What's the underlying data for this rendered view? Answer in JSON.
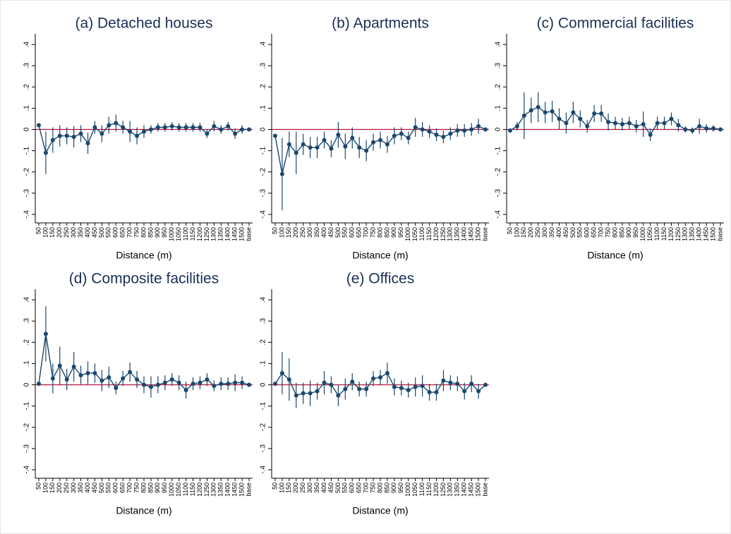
{
  "chart_data": [
    {
      "type": "line",
      "title": "(a) Detached houses",
      "x_label": "Distance (m)",
      "categories": [
        "50",
        "100",
        "150",
        "200",
        "250",
        "300",
        "350",
        "400",
        "450",
        "500",
        "550",
        "600",
        "650",
        "700",
        "750",
        "800",
        "850",
        "900",
        "950",
        "1000",
        "1050",
        "1100",
        "1150",
        "1200",
        "1250",
        "1300",
        "1350",
        "1400",
        "1450",
        "1500",
        "base"
      ],
      "values": [
        0.02,
        -0.11,
        -0.05,
        -0.03,
        -0.03,
        -0.035,
        -0.02,
        -0.065,
        0.01,
        -0.02,
        0.02,
        0.03,
        0.01,
        -0.01,
        -0.03,
        -0.01,
        0.0,
        0.01,
        0.01,
        0.015,
        0.01,
        0.01,
        0.01,
        0.01,
        -0.02,
        0.015,
        0.0,
        0.015,
        -0.02,
        0.0,
        0.0
      ],
      "error": [
        0,
        0.1,
        0.06,
        0.05,
        0.04,
        0.05,
        0.04,
        0.05,
        0.03,
        0.04,
        0.04,
        0.04,
        0.03,
        0.05,
        0.04,
        0.03,
        0.02,
        0.02,
        0.02,
        0.02,
        0.02,
        0.02,
        0.02,
        0.02,
        0.02,
        0.025,
        0.02,
        0.02,
        0.025,
        0.02,
        0
      ],
      "color": "#1a476f",
      "hline": 0,
      "hline_color": "#b5123c",
      "ylim": [
        -0.44,
        0.45
      ],
      "yticks": [
        {
          "value": 0.4,
          "label": ".4"
        },
        {
          "value": 0.3,
          "label": ".3"
        },
        {
          "value": 0.2,
          "label": ".2"
        },
        {
          "value": 0.1,
          "label": ".1"
        },
        0,
        {
          "value": -0.1,
          "label": "-.1"
        },
        {
          "value": -0.2,
          "label": "-.2"
        },
        {
          "value": -0.3,
          "label": "-.3"
        },
        {
          "value": -0.4,
          "label": "-.4"
        }
      ]
    },
    {
      "type": "line",
      "title": "(b) Apartments",
      "x_label": "Distance (m)",
      "categories": [
        "50",
        "100",
        "150",
        "200",
        "250",
        "300",
        "350",
        "400",
        "450",
        "500",
        "550",
        "600",
        "650",
        "700",
        "750",
        "800",
        "850",
        "900",
        "950",
        "1000",
        "1050",
        "1100",
        "1150",
        "1200",
        "1250",
        "1300",
        "1350",
        "1400",
        "1450",
        "1500",
        "base"
      ],
      "values": [
        -0.03,
        -0.21,
        -0.07,
        -0.11,
        -0.07,
        -0.085,
        -0.085,
        -0.05,
        -0.09,
        -0.025,
        -0.08,
        -0.04,
        -0.085,
        -0.1,
        -0.06,
        -0.05,
        -0.07,
        -0.03,
        -0.02,
        -0.04,
        0.01,
        0.0,
        -0.01,
        -0.025,
        -0.035,
        -0.02,
        -0.005,
        -0.005,
        0.0,
        0.015,
        0.0
      ],
      "error": [
        0,
        0.17,
        0.06,
        0.1,
        0.05,
        0.05,
        0.05,
        0.04,
        0.04,
        0.06,
        0.06,
        0.05,
        0.05,
        0.05,
        0.04,
        0.04,
        0.04,
        0.04,
        0.03,
        0.03,
        0.045,
        0.035,
        0.03,
        0.03,
        0.03,
        0.03,
        0.03,
        0.03,
        0.03,
        0.035,
        0
      ],
      "color": "#1a476f",
      "hline": 0,
      "hline_color": "#b5123c",
      "ylim": [
        -0.44,
        0.45
      ],
      "yticks": [
        {
          "value": 0.4,
          "label": ".4"
        },
        {
          "value": 0.3,
          "label": ".3"
        },
        {
          "value": 0.2,
          "label": ".2"
        },
        {
          "value": 0.1,
          "label": ".1"
        },
        0,
        {
          "value": -0.1,
          "label": "-.1"
        },
        {
          "value": -0.2,
          "label": "-.2"
        },
        {
          "value": -0.3,
          "label": "-.3"
        },
        {
          "value": -0.4,
          "label": "-.4"
        }
      ]
    },
    {
      "type": "line",
      "title": "(c) Commercial facilities",
      "x_label": "Distance (m)",
      "categories": [
        "50",
        "100",
        "150",
        "200",
        "250",
        "300",
        "350",
        "400",
        "450",
        "500",
        "550",
        "600",
        "650",
        "700",
        "750",
        "800",
        "850",
        "900",
        "950",
        "1000",
        "1050",
        "1100",
        "1150",
        "1200",
        "1250",
        "1300",
        "1350",
        "1400",
        "1450",
        "1500",
        "base"
      ],
      "values": [
        -0.005,
        0.015,
        0.065,
        0.09,
        0.105,
        0.08,
        0.085,
        0.05,
        0.03,
        0.08,
        0.05,
        0.015,
        0.075,
        0.075,
        0.035,
        0.03,
        0.025,
        0.03,
        0.015,
        0.025,
        -0.025,
        0.03,
        0.03,
        0.05,
        0.02,
        0.0,
        -0.005,
        0.015,
        0.005,
        0.005,
        0.0
      ],
      "error": [
        0,
        0.02,
        0.11,
        0.06,
        0.07,
        0.05,
        0.05,
        0.05,
        0.05,
        0.05,
        0.04,
        0.03,
        0.04,
        0.04,
        0.04,
        0.03,
        0.03,
        0.03,
        0.03,
        0.06,
        0.03,
        0.03,
        0.03,
        0.03,
        0.03,
        0.015,
        0.015,
        0.035,
        0.02,
        0.015,
        0
      ],
      "color": "#1a476f",
      "hline": 0,
      "hline_color": "#b5123c",
      "ylim": [
        -0.44,
        0.45
      ],
      "yticks": [
        {
          "value": 0.4,
          "label": ".4"
        },
        {
          "value": 0.3,
          "label": ".3"
        },
        {
          "value": 0.2,
          "label": ".2"
        },
        {
          "value": 0.1,
          "label": ".1"
        },
        0,
        {
          "value": -0.1,
          "label": "-.1"
        },
        {
          "value": -0.2,
          "label": "-.2"
        },
        {
          "value": -0.3,
          "label": "-.3"
        },
        {
          "value": -0.4,
          "label": "-.4"
        }
      ]
    },
    {
      "type": "line",
      "title": "(d) Composite facilities",
      "x_label": "Distance (m)",
      "categories": [
        "50",
        "100",
        "150",
        "200",
        "250",
        "300",
        "350",
        "400",
        "450",
        "500",
        "550",
        "600",
        "650",
        "700",
        "750",
        "800",
        "850",
        "900",
        "950",
        "1000",
        "1050",
        "1100",
        "1150",
        "1200",
        "1250",
        "1300",
        "1350",
        "1400",
        "1450",
        "1500",
        "base"
      ],
      "values": [
        0.005,
        0.24,
        0.03,
        0.09,
        0.025,
        0.085,
        0.045,
        0.055,
        0.055,
        0.02,
        0.035,
        -0.015,
        0.03,
        0.06,
        0.025,
        0.0,
        -0.01,
        0.0,
        0.01,
        0.025,
        0.01,
        -0.025,
        0.005,
        0.01,
        0.025,
        -0.005,
        0.005,
        0.005,
        0.01,
        0.01,
        0.0
      ],
      "error": [
        0,
        0.13,
        0.07,
        0.09,
        0.05,
        0.07,
        0.045,
        0.055,
        0.045,
        0.05,
        0.05,
        0.03,
        0.035,
        0.045,
        0.04,
        0.04,
        0.05,
        0.04,
        0.035,
        0.03,
        0.035,
        0.04,
        0.03,
        0.03,
        0.03,
        0.025,
        0.03,
        0.03,
        0.04,
        0.03,
        0
      ],
      "color": "#1a476f",
      "hline": 0,
      "hline_color": "#b5123c",
      "ylim": [
        -0.44,
        0.45
      ],
      "yticks": [
        {
          "value": 0.4,
          "label": ".4"
        },
        {
          "value": 0.3,
          "label": ".3"
        },
        {
          "value": 0.2,
          "label": ".2"
        },
        {
          "value": 0.1,
          "label": ".1"
        },
        0,
        {
          "value": -0.1,
          "label": "-.1"
        },
        {
          "value": -0.2,
          "label": "-.2"
        },
        {
          "value": -0.3,
          "label": "-.3"
        },
        {
          "value": -0.4,
          "label": "-.4"
        }
      ]
    },
    {
      "type": "line",
      "title": "(e) Offices",
      "x_label": "Distance (m)",
      "categories": [
        "50",
        "100",
        "150",
        "200",
        "250",
        "300",
        "350",
        "400",
        "450",
        "500",
        "550",
        "600",
        "650",
        "700",
        "750",
        "800",
        "850",
        "900",
        "950",
        "1000",
        "1050",
        "1100",
        "1150",
        "1200",
        "1250",
        "1300",
        "1350",
        "1400",
        "1450",
        "1500",
        "base"
      ],
      "values": [
        0.005,
        0.055,
        0.025,
        -0.05,
        -0.04,
        -0.04,
        -0.03,
        0.01,
        0.0,
        -0.05,
        -0.02,
        0.015,
        -0.02,
        -0.02,
        0.03,
        0.035,
        0.055,
        -0.01,
        -0.015,
        -0.025,
        -0.01,
        -0.005,
        -0.035,
        -0.035,
        0.02,
        0.01,
        0.005,
        -0.03,
        0.005,
        -0.03,
        0.0
      ],
      "error": [
        0,
        0.1,
        0.1,
        0.06,
        0.05,
        0.06,
        0.04,
        0.055,
        0.04,
        0.05,
        0.05,
        0.04,
        0.035,
        0.035,
        0.035,
        0.035,
        0.05,
        0.04,
        0.035,
        0.035,
        0.045,
        0.05,
        0.04,
        0.04,
        0.05,
        0.035,
        0.035,
        0.04,
        0.04,
        0.035,
        0
      ],
      "color": "#1a476f",
      "hline": 0,
      "hline_color": "#b5123c",
      "ylim": [
        -0.44,
        0.45
      ],
      "yticks": [
        {
          "value": 0.4,
          "label": ".4"
        },
        {
          "value": 0.3,
          "label": ".3"
        },
        {
          "value": 0.2,
          "label": ".2"
        },
        {
          "value": 0.1,
          "label": ".1"
        },
        0,
        {
          "value": -0.1,
          "label": "-.1"
        },
        {
          "value": -0.2,
          "label": "-.2"
        },
        {
          "value": -0.3,
          "label": "-.3"
        },
        {
          "value": -0.4,
          "label": "-.4"
        }
      ]
    }
  ]
}
